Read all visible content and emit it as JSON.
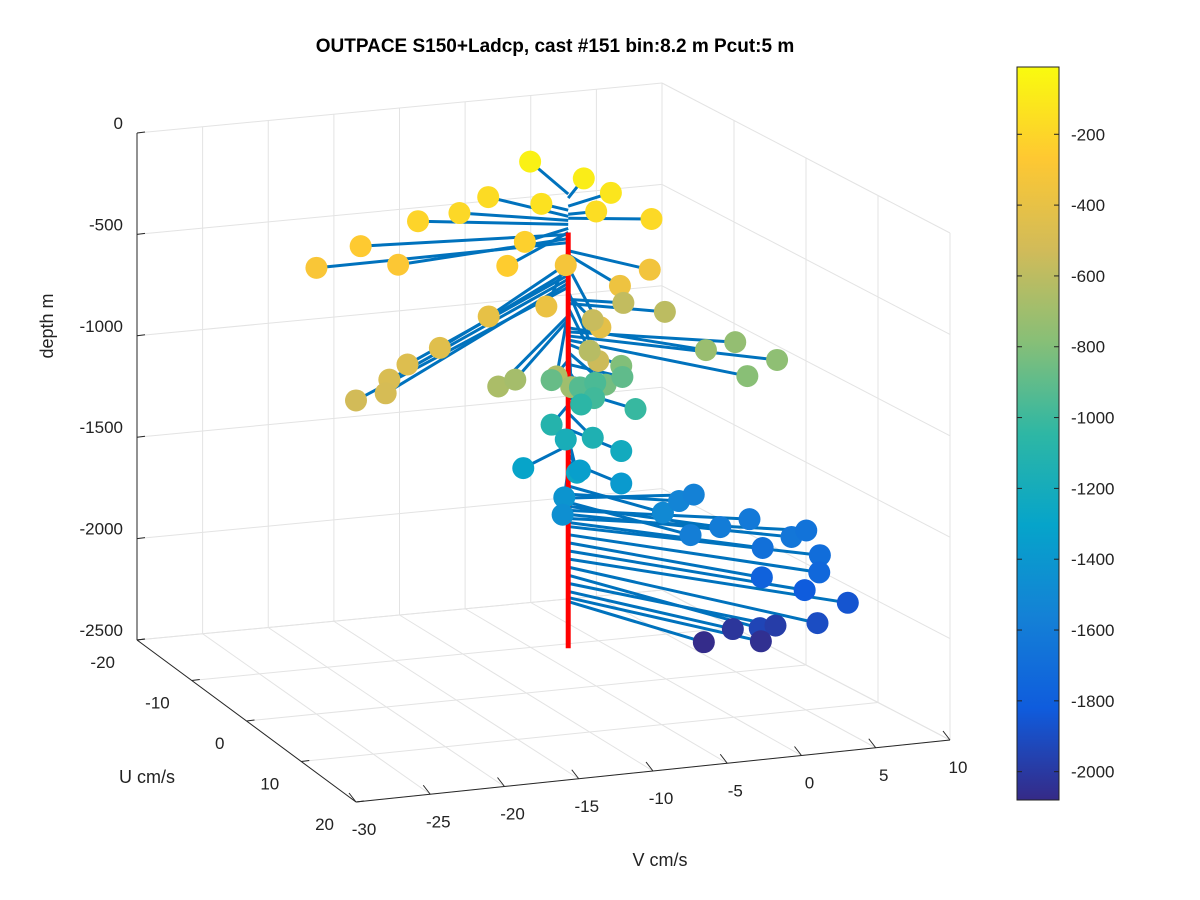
{
  "chart_data": {
    "type": "scatter",
    "title": "OUTPACE S150+Ladcp, cast #151 bin:8.2 m  Pcut:5 m",
    "xlabel": "V cm/s",
    "ylabel": "U cm/s",
    "zlabel": "depth m",
    "x_ticks": [
      "-30",
      "-25",
      "-20",
      "-15",
      "-10",
      "-5",
      "0",
      "5",
      "10"
    ],
    "y_ticks": [
      "-20",
      "-10",
      "0",
      "10",
      "20"
    ],
    "z_ticks": [
      "0",
      "-500",
      "-1000",
      "-1500",
      "-2000",
      "-2500"
    ],
    "xlim": [
      -30,
      10
    ],
    "ylim": [
      -20,
      20
    ],
    "zlim": [
      -2500,
      0
    ],
    "grid": true,
    "colorbar": {
      "range": [
        -2080,
        -10
      ],
      "ticks": [
        "-200",
        "-400",
        "-600",
        "-800",
        "-1000",
        "-1200",
        "-1400",
        "-1600",
        "-1800",
        "-2000"
      ],
      "colormap": "parula"
    },
    "vertical_line": {
      "v": -7,
      "u": 0,
      "z_top": -250,
      "z_bottom": -2300,
      "color": "#ff0000"
    },
    "vector_color": "#0072bd",
    "series": [
      {
        "points": [
          {
            "v": -6,
            "u": -8,
            "z": -60
          },
          {
            "v": -4,
            "u": -4,
            "z": -80
          },
          {
            "v": -3,
            "u": -2,
            "z": -120
          },
          {
            "v": -8,
            "u": -2,
            "z": -140
          },
          {
            "v": -5,
            "u": 0,
            "z": -160
          },
          {
            "v": -2,
            "u": 2,
            "z": -180
          },
          {
            "v": -10,
            "u": -6,
            "z": -170
          },
          {
            "v": -13,
            "u": -4,
            "z": -190
          },
          {
            "v": -16,
            "u": -4,
            "z": -210
          },
          {
            "v": -11,
            "u": 2,
            "z": -230
          },
          {
            "v": -14,
            "u": 6,
            "z": -250
          },
          {
            "v": -21,
            "u": -2,
            "z": -260
          },
          {
            "v": -20,
            "u": 2,
            "z": -280
          },
          {
            "v": -25,
            "u": 0,
            "z": -300
          },
          {
            "v": -9,
            "u": 4,
            "z": -320
          },
          {
            "v": -4,
            "u": 6,
            "z": -340
          },
          {
            "v": -7,
            "u": 8,
            "z": -360
          },
          {
            "v": -13,
            "u": 10,
            "z": -380
          },
          {
            "v": -17,
            "u": 10,
            "z": -400
          },
          {
            "v": -11,
            "u": 14,
            "z": -420
          },
          {
            "v": -22,
            "u": 14,
            "z": -440
          },
          {
            "v": -25,
            "u": 16,
            "z": -460
          },
          {
            "v": -27,
            "u": 18,
            "z": -480
          },
          {
            "v": -28,
            "u": 20,
            "z": -500
          },
          {
            "v": -30,
            "u": 20,
            "z": -520
          },
          {
            "v": -12,
            "u": 16,
            "z": -540
          },
          {
            "v": -8,
            "u": 6,
            "z": -560
          },
          {
            "v": -4,
            "u": 2,
            "z": -580
          },
          {
            "v": -2,
            "u": 4,
            "z": -600
          },
          {
            "v": -10,
            "u": 10,
            "z": -620
          },
          {
            "v": -14,
            "u": 14,
            "z": -640
          },
          {
            "v": -18,
            "u": 14,
            "z": -660
          },
          {
            "v": -16,
            "u": 12,
            "z": -680
          },
          {
            "v": -13,
            "u": 14,
            "z": -700
          },
          {
            "v": -1,
            "u": 8,
            "z": -720
          },
          {
            "v": 2,
            "u": 6,
            "z": -740
          },
          {
            "v": 3,
            "u": 10,
            "z": -760
          },
          {
            "v": 0,
            "u": 12,
            "z": -780
          },
          {
            "v": -6,
            "u": 6,
            "z": -800
          },
          {
            "v": -8,
            "u": 8,
            "z": -840
          },
          {
            "v": -10,
            "u": 4,
            "z": -880
          },
          {
            "v": -5,
            "u": 4,
            "z": -900
          },
          {
            "v": -8,
            "u": 4,
            "z": -930
          },
          {
            "v": -6,
            "u": 2,
            "z": -960
          },
          {
            "v": -7,
            "u": 4,
            "z": -990
          },
          {
            "v": -5,
            "u": 6,
            "z": -1020
          },
          {
            "v": -7,
            "u": 2,
            "z": -1060
          },
          {
            "v": -10,
            "u": 4,
            "z": -1100
          },
          {
            "v": -8,
            "u": 6,
            "z": -1140
          },
          {
            "v": -9,
            "u": 4,
            "z": -1180
          },
          {
            "v": -6,
            "u": 6,
            "z": -1220
          },
          {
            "v": -10,
            "u": 8,
            "z": -1260
          },
          {
            "v": -12,
            "u": 4,
            "z": -1300
          },
          {
            "v": -8,
            "u": 4,
            "z": -1340
          },
          {
            "v": -6,
            "u": 6,
            "z": -1380
          },
          {
            "v": -10,
            "u": 6,
            "z": -1420
          },
          {
            "v": -11,
            "u": 8,
            "z": -1460
          },
          {
            "v": -4,
            "u": 8,
            "z": -1500
          },
          {
            "v": -1,
            "u": 4,
            "z": -1540
          },
          {
            "v": 1,
            "u": 2,
            "z": -1560
          },
          {
            "v": -3,
            "u": 10,
            "z": -1580
          },
          {
            "v": 0,
            "u": 8,
            "z": -1600
          },
          {
            "v": 3,
            "u": 6,
            "z": -1620
          },
          {
            "v": 4,
            "u": 10,
            "z": -1640
          },
          {
            "v": 6,
            "u": 8,
            "z": -1660
          },
          {
            "v": 2,
            "u": 10,
            "z": -1680
          },
          {
            "v": 5,
            "u": 12,
            "z": -1700
          },
          {
            "v": 4,
            "u": 14,
            "z": -1740
          },
          {
            "v": 1,
            "u": 12,
            "z": -1780
          },
          {
            "v": 3,
            "u": 14,
            "z": -1820
          },
          {
            "v": 5,
            "u": 16,
            "z": -1860
          },
          {
            "v": 2,
            "u": 18,
            "z": -1900
          },
          {
            "v": -1,
            "u": 16,
            "z": -1940
          },
          {
            "v": 1,
            "u": 14,
            "z": -1980
          },
          {
            "v": -1,
            "u": 12,
            "z": -2020
          },
          {
            "v": 0,
            "u": 14,
            "z": -2050
          },
          {
            "v": -3,
            "u": 12,
            "z": -2070
          }
        ]
      }
    ]
  }
}
